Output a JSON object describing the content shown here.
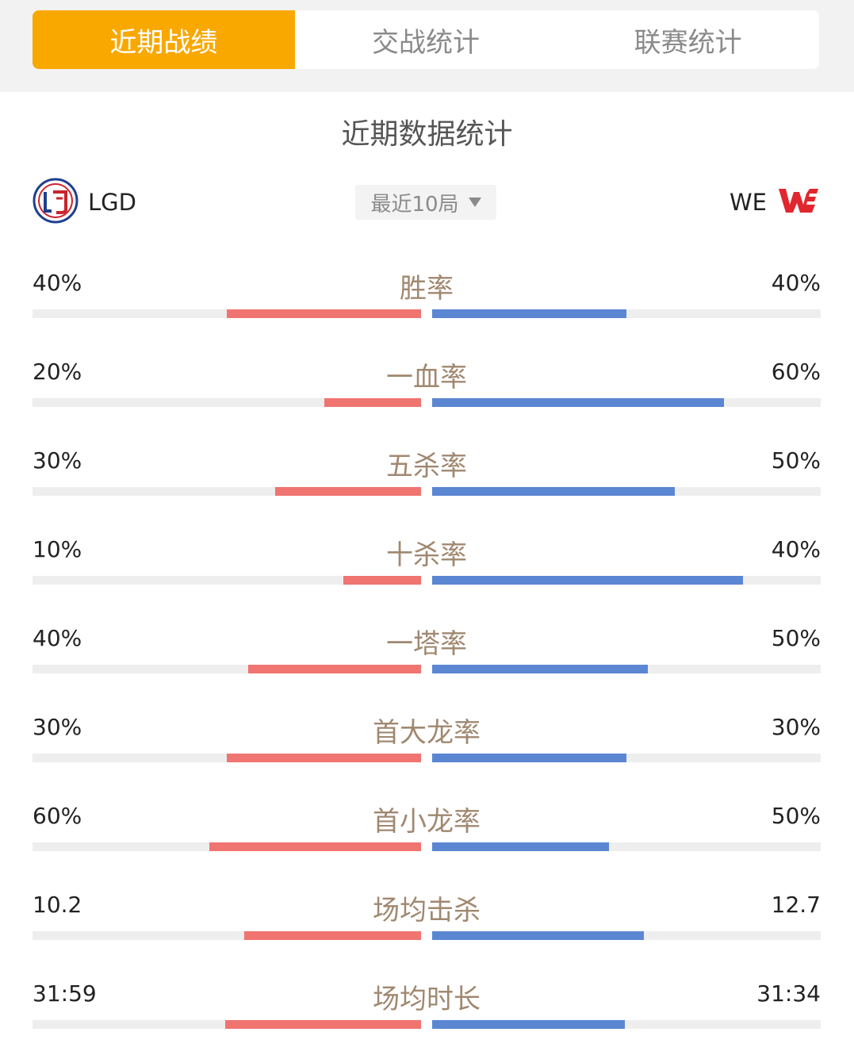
{
  "tabs": [
    {
      "label": "近期战绩",
      "active": true
    },
    {
      "label": "交战统计",
      "active": false
    },
    {
      "label": "联赛统计",
      "active": false
    }
  ],
  "section_title": "近期数据统计",
  "team_left": {
    "name": "LGD",
    "logo": "lgd-logo"
  },
  "team_right": {
    "name": "WE",
    "logo": "we-logo"
  },
  "dropdown": {
    "selected": "最近10局"
  },
  "colors": {
    "accent": "#f9a800",
    "left_bar": "#f07470",
    "right_bar": "#5b86d2",
    "label": "#a08870"
  },
  "stats": [
    {
      "label": "胜率",
      "left": "40%",
      "right": "40%",
      "left_fill": 0.5,
      "right_fill": 0.5
    },
    {
      "label": "一血率",
      "left": "20%",
      "right": "60%",
      "left_fill": 0.25,
      "right_fill": 0.75
    },
    {
      "label": "五杀率",
      "left": "30%",
      "right": "50%",
      "left_fill": 0.375,
      "right_fill": 0.625
    },
    {
      "label": "十杀率",
      "left": "10%",
      "right": "40%",
      "left_fill": 0.2,
      "right_fill": 0.8
    },
    {
      "label": "一塔率",
      "left": "40%",
      "right": "50%",
      "left_fill": 0.444,
      "right_fill": 0.556
    },
    {
      "label": "首大龙率",
      "left": "30%",
      "right": "30%",
      "left_fill": 0.5,
      "right_fill": 0.5
    },
    {
      "label": "首小龙率",
      "left": "60%",
      "right": "50%",
      "left_fill": 0.545,
      "right_fill": 0.455
    },
    {
      "label": "场均击杀",
      "left": "10.2",
      "right": "12.7",
      "left_fill": 0.455,
      "right_fill": 0.545
    },
    {
      "label": "场均时长",
      "left": "31:59",
      "right": "31:34",
      "left_fill": 0.504,
      "right_fill": 0.496
    }
  ]
}
